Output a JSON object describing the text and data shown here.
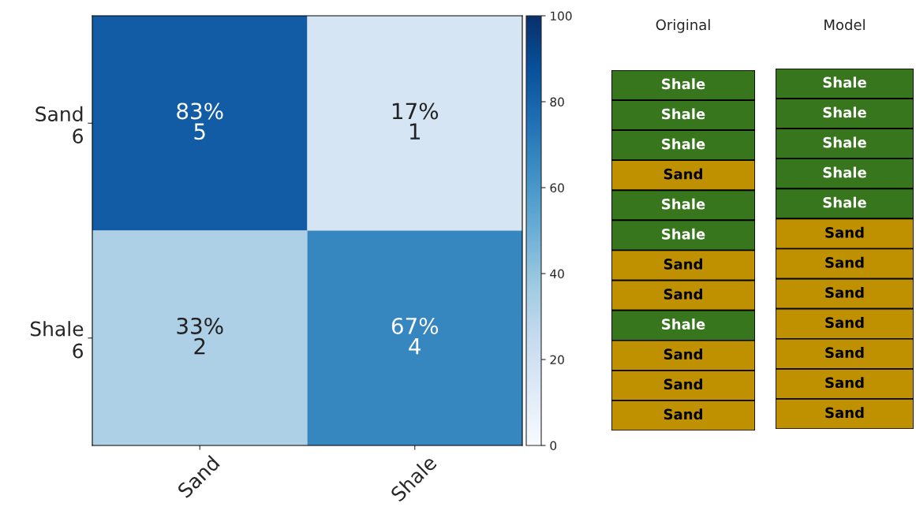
{
  "chart_data": [
    {
      "type": "heatmap",
      "categories": [
        "Sand",
        "Shale"
      ],
      "y_categories": [
        "Sand\n6",
        "Shale\n6"
      ],
      "cells": [
        [
          83,
          17
        ],
        [
          33,
          67
        ]
      ],
      "cell_labels": [
        [
          "83%\n5",
          "17%\n1"
        ],
        [
          "33%\n2",
          "67%\n4"
        ]
      ],
      "clim": [
        0,
        100
      ],
      "cticks": [
        0,
        20,
        40,
        60,
        80,
        100
      ]
    },
    {
      "type": "other",
      "title": "Original",
      "categories": [
        "Shale",
        "Shale",
        "Shale",
        "Sand",
        "Shale",
        "Shale",
        "Sand",
        "Sand",
        "Shale",
        "Sand",
        "Sand",
        "Sand"
      ],
      "colors": [
        "#38761d",
        "#38761d",
        "#38761d",
        "#bf9000",
        "#38761d",
        "#38761d",
        "#bf9000",
        "#bf9000",
        "#38761d",
        "#bf9000",
        "#bf9000",
        "#bf9000"
      ]
    },
    {
      "type": "other",
      "title": "Model",
      "categories": [
        "Shale",
        "Shale",
        "Shale",
        "Shale",
        "Shale",
        "Sand",
        "Sand",
        "Sand",
        "Sand",
        "Sand",
        "Sand",
        "Sand"
      ],
      "colors": [
        "#38761d",
        "#38761d",
        "#38761d",
        "#38761d",
        "#38761d",
        "#bf9000",
        "#bf9000",
        "#bf9000",
        "#bf9000",
        "#bf9000",
        "#bf9000",
        "#bf9000"
      ]
    }
  ]
}
